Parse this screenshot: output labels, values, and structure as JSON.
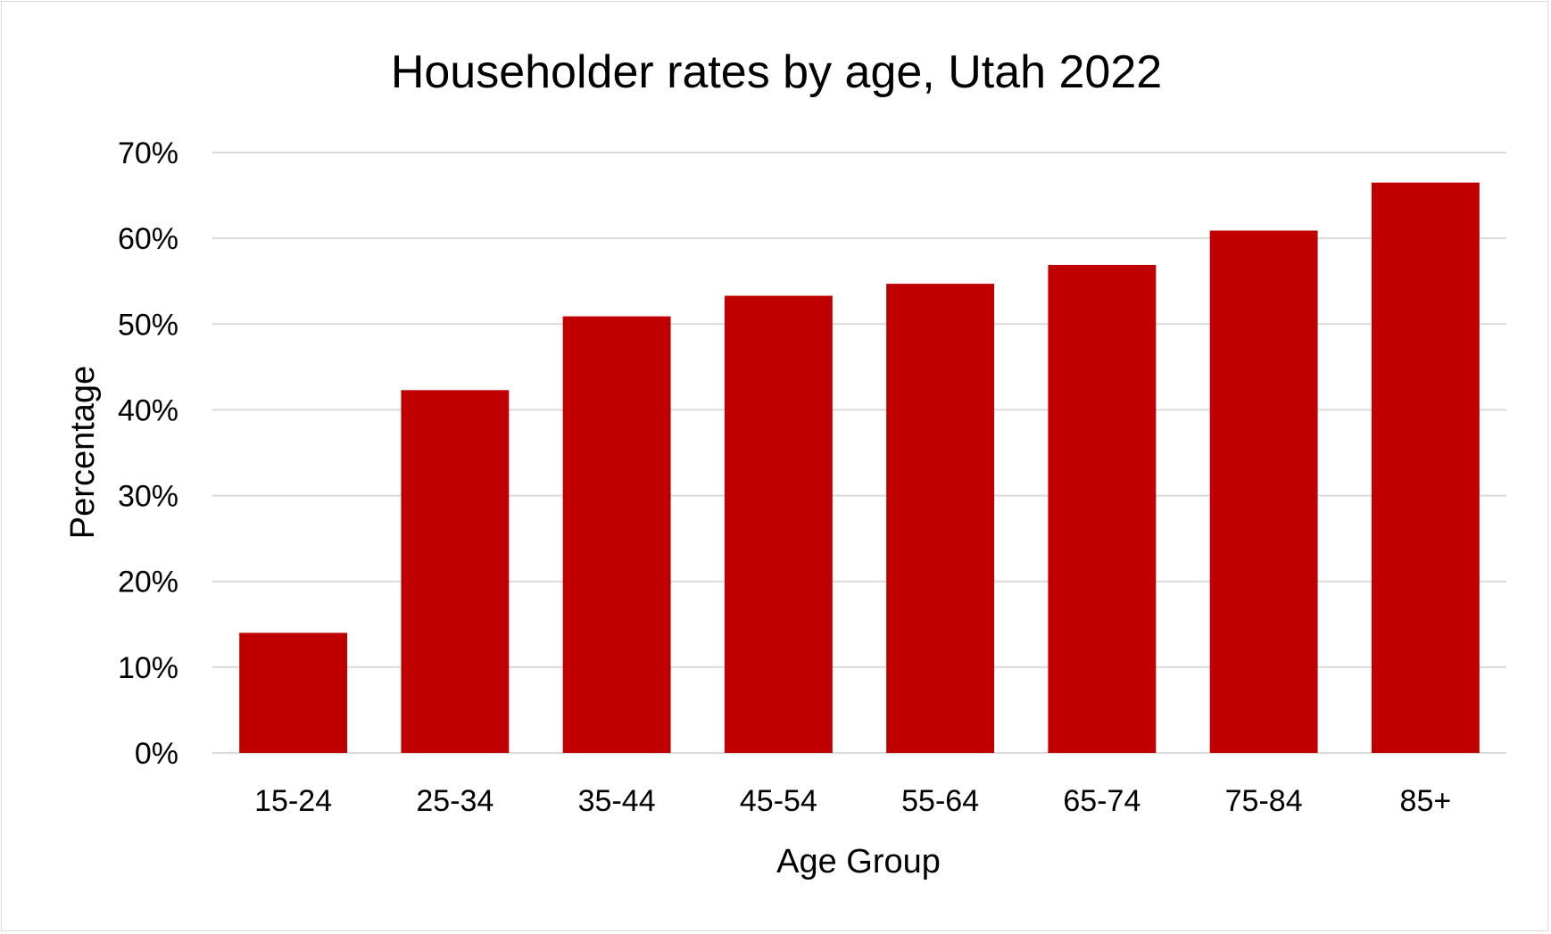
{
  "chart_data": {
    "type": "bar",
    "title": "Householder rates by age, Utah 2022",
    "xlabel": "Age Group",
    "ylabel": "Percentage",
    "categories": [
      "15-24",
      "25-34",
      "35-44",
      "45-54",
      "55-64",
      "65-74",
      "75-84",
      "85+"
    ],
    "values": [
      14,
      42.3,
      50.9,
      53.3,
      54.7,
      56.9,
      60.9,
      66.5
    ],
    "ylim": [
      0,
      70
    ],
    "yticks": [
      "0%",
      "10%",
      "20%",
      "30%",
      "40%",
      "50%",
      "60%",
      "70%"
    ],
    "y_tick_values": [
      0,
      10,
      20,
      30,
      40,
      50,
      60,
      70
    ],
    "grid": true,
    "legend": "none",
    "bar_color": "#c00000",
    "grid_color": "#d9d9d9"
  }
}
